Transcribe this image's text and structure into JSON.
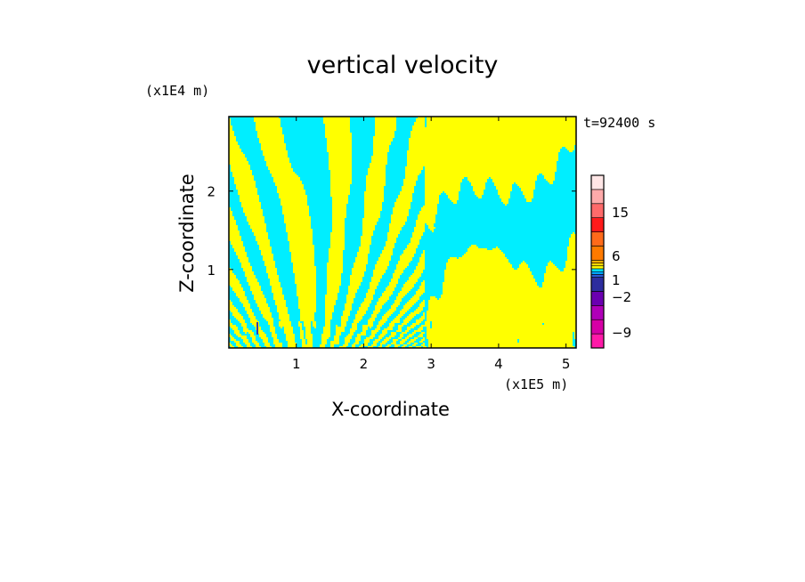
{
  "chart_data": {
    "type": "heatmap",
    "title": "vertical velocity",
    "xlabel": "X-coordinate",
    "ylabel": "Z-coordinate",
    "x_unit": "(x1E5 m)",
    "z_unit": "(x1E4 m)",
    "time_label": "t=92400 s",
    "xlim": [
      0,
      5.15
    ],
    "ylim": [
      0,
      2.95
    ],
    "x_ticks": [
      "1",
      "2",
      "3",
      "4",
      "5"
    ],
    "y_ticks": [
      "1",
      "2"
    ],
    "field_colors": {
      "positive": "#ffff00",
      "negative": "#00eeff",
      "strong_negative": "#3a3aaa"
    },
    "colorbar": {
      "levels": [
        {
          "color": "#ff1aa8"
        },
        {
          "color": "#d600a6"
        },
        {
          "color": "#b000b8"
        },
        {
          "color": "#6a00b0"
        },
        {
          "color": "#2d2d9e"
        },
        {
          "color": "#2b5ad6"
        },
        {
          "color": "#00a6ff"
        },
        {
          "color": "#00eeff"
        },
        {
          "color": "#ffff00"
        },
        {
          "color": "#ffdb00"
        },
        {
          "color": "#ffb000"
        },
        {
          "color": "#ff7a00"
        },
        {
          "color": "#ff6a1a"
        },
        {
          "color": "#ff1a1a"
        },
        {
          "color": "#ff6a6a"
        },
        {
          "color": "#ffaaaa"
        },
        {
          "color": "#ffe6e6"
        }
      ],
      "labels": [
        "15",
        "6",
        "1",
        "−2",
        "−9"
      ]
    }
  }
}
